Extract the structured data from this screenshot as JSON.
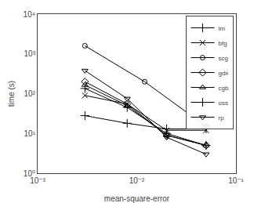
{
  "chart_data": {
    "type": "line",
    "xlabel": "mean-square-error",
    "ylabel": "time (s)",
    "log": true,
    "grid": false,
    "legend": "upper right",
    "xlim": [
      0.001,
      0.1
    ],
    "ylim": [
      1,
      10000
    ],
    "xticks": [
      {
        "value": 0.001,
        "label": "10⁻³"
      },
      {
        "value": 0.01,
        "label": "10⁻²"
      },
      {
        "value": 0.1,
        "label": "10⁻¹"
      }
    ],
    "yticks": [
      {
        "value": 1,
        "label": "10⁰"
      },
      {
        "value": 10,
        "label": "10¹"
      },
      {
        "value": 100,
        "label": "10²"
      },
      {
        "value": 1000,
        "label": "10³"
      },
      {
        "value": 10000,
        "label": "10⁴"
      }
    ],
    "series": [
      {
        "name": "lm",
        "color": "black",
        "marker": "plus",
        "line_style": "solid",
        "x": [
          0.003,
          0.008,
          0.02,
          0.05
        ],
        "values": [
          28,
          18,
          13,
          13
        ]
      },
      {
        "name": "bfg",
        "color": "black",
        "marker": "x",
        "line_style": "solid",
        "x": [
          0.003,
          0.008,
          0.02,
          0.05
        ],
        "values": [
          90,
          55,
          12,
          12
        ]
      },
      {
        "name": "scg",
        "color": "black",
        "marker": "circle-open",
        "line_style": "solid",
        "x": [
          0.003,
          0.012,
          0.05
        ],
        "values": [
          1600,
          200,
          15
        ]
      },
      {
        "name": "gdx",
        "color": "black",
        "marker": "diamond-open",
        "line_style": "solid",
        "x": [
          0.003,
          0.008,
          0.02,
          0.05
        ],
        "values": [
          200,
          55,
          9,
          5
        ]
      },
      {
        "name": "cgb",
        "color": "black",
        "marker": "triangle-up-open",
        "line_style": "solid",
        "x": [
          0.003,
          0.008,
          0.02,
          0.05
        ],
        "values": [
          165,
          50,
          9,
          5
        ]
      },
      {
        "name": "oss",
        "color": "black",
        "marker": "plus",
        "line_style": "solid",
        "x": [
          0.003,
          0.008,
          0.02,
          0.05
        ],
        "values": [
          135,
          45,
          10,
          5
        ]
      },
      {
        "name": "rp",
        "color": "black",
        "marker": "triangle-down-open",
        "line_style": "solid",
        "x": [
          0.003,
          0.008,
          0.02,
          0.05
        ],
        "values": [
          380,
          75,
          8,
          3
        ]
      }
    ]
  }
}
